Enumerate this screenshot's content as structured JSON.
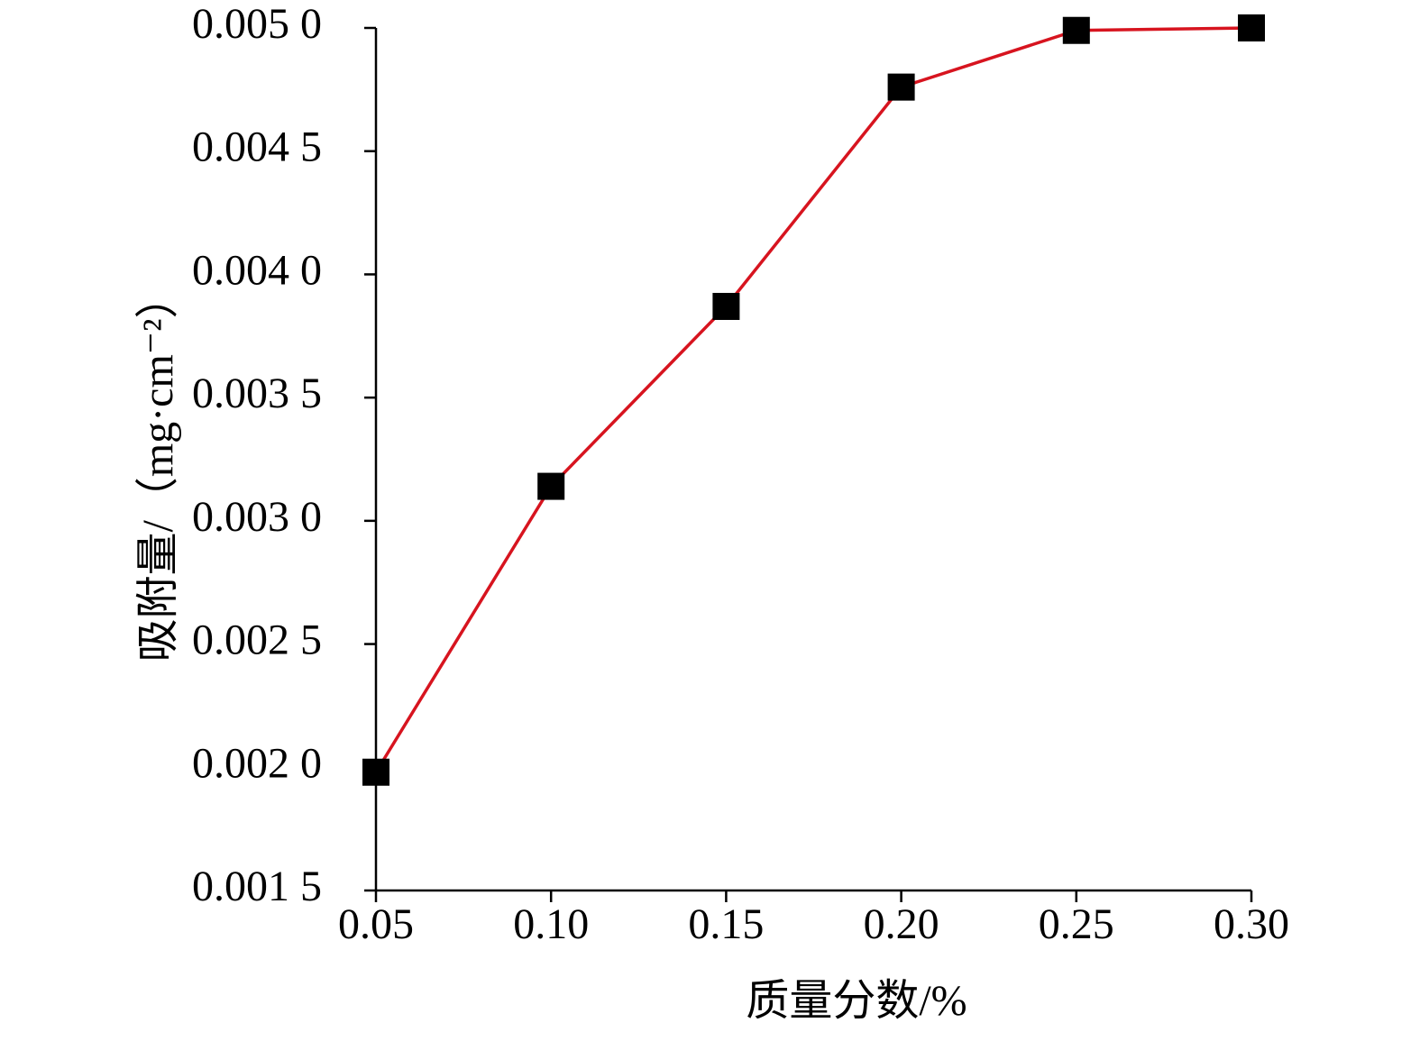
{
  "chart_data": {
    "type": "line",
    "x_label": "质量分数/%",
    "y_label": "吸附量/（mg·cm⁻²）",
    "x": [
      0.05,
      0.1,
      0.15,
      0.2,
      0.25,
      0.3
    ],
    "values": [
      0.00198,
      0.00314,
      0.00387,
      0.00476,
      0.00499,
      0.005
    ],
    "color": "#d7141f",
    "marker_color": "#000000",
    "xlim": [
      0.05,
      0.3
    ],
    "xticks": [
      0.05,
      {
        "value": 0.1,
        "label": "0.10"
      },
      0.15,
      {
        "value": 0.2,
        "label": "0.20"
      },
      0.25,
      {
        "value": 0.3,
        "label": "0.30"
      }
    ],
    "ylim": [
      0.0015,
      0.005
    ],
    "yticks": [
      {
        "value": 0.0015,
        "label": "0.001 5"
      },
      {
        "value": 0.002,
        "label": "0.002 0"
      },
      {
        "value": 0.0025,
        "label": "0.002 5"
      },
      {
        "value": 0.003,
        "label": "0.003 0"
      },
      {
        "value": 0.0035,
        "label": "0.003 5"
      },
      {
        "value": 0.004,
        "label": "0.004 0"
      },
      {
        "value": 0.0045,
        "label": "0.004 5"
      },
      {
        "value": 0.005,
        "label": "0.005 0"
      }
    ]
  }
}
